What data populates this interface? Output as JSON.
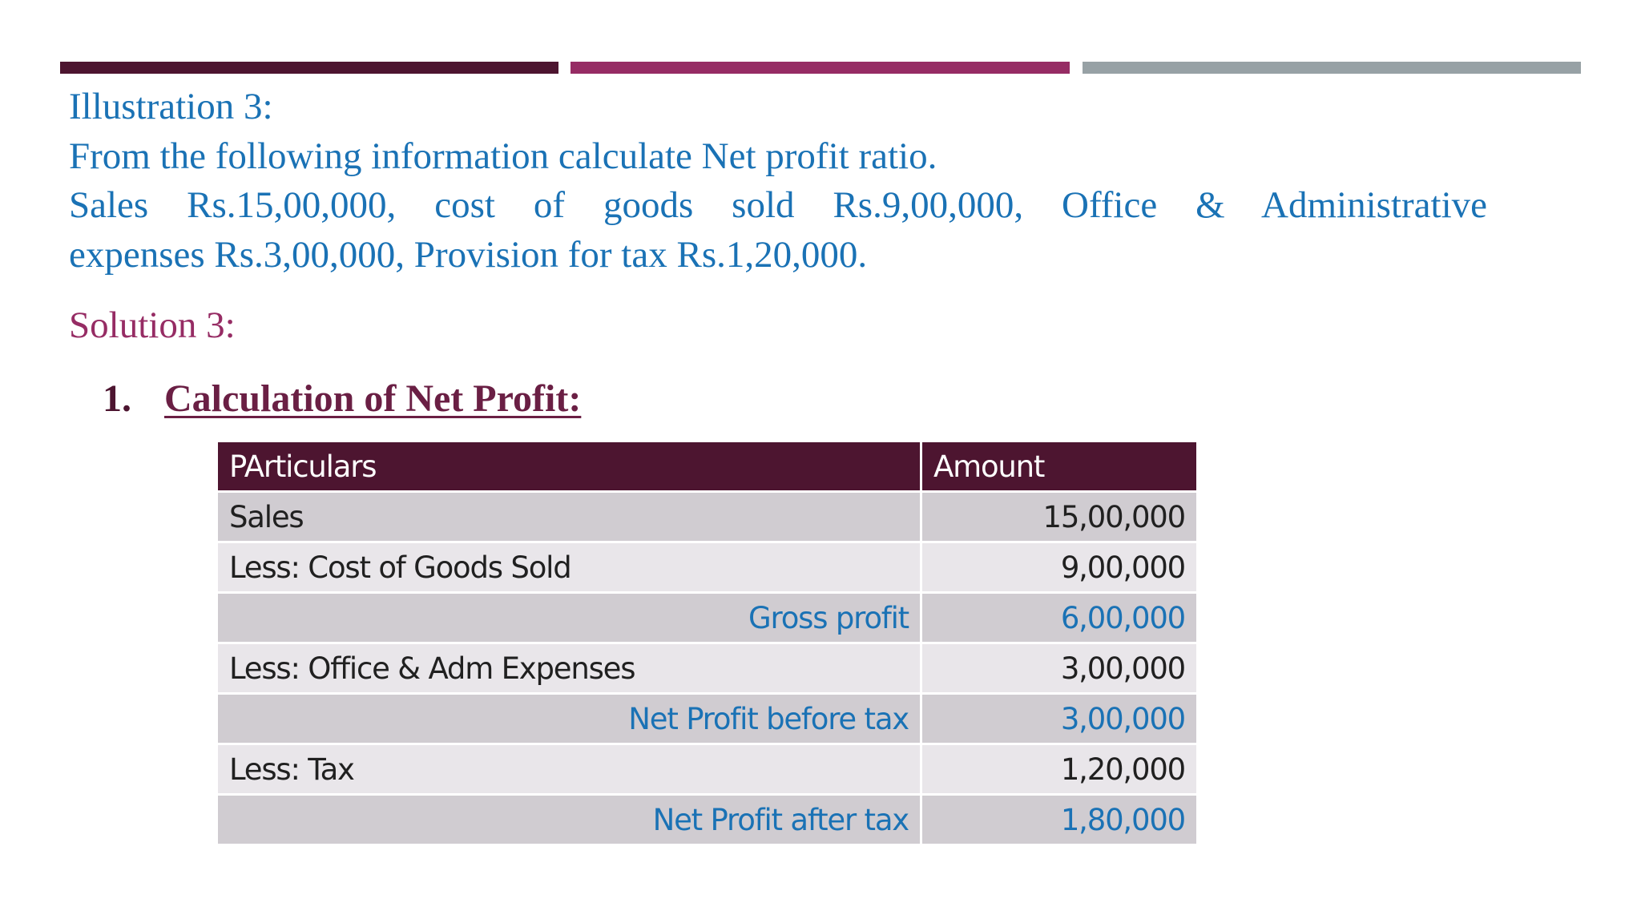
{
  "colors": {
    "bar_1": "#4d1530",
    "bar_2": "#962c64",
    "bar_3": "#97a1a5",
    "question_text": "#1a72b5",
    "solution_text": "#962c64",
    "table_header": "#4d1530",
    "row_dark": "#d0ccd1",
    "row_light": "#e9e6ea",
    "highlight_text": "#1a72b5"
  },
  "question": {
    "title": "Illustration 3:",
    "prompt": "From the following information calculate Net profit ratio.",
    "line_1": "Sales Rs.15,00,000, cost of goods sold Rs.9,00,000, Office & Administrative",
    "line_2": "expenses Rs.3,00,000, Provision for tax Rs.1,20,000."
  },
  "solution": {
    "heading": "Solution 3:",
    "step_number": "1.",
    "step_title": "Calculation of  Net Profit:"
  },
  "table": {
    "headers": [
      "PArticulars",
      "Amount"
    ],
    "rows": [
      {
        "particular": "Sales",
        "amount": "15,00,000"
      },
      {
        "particular": "Less: Cost of Goods Sold",
        "amount": "9,00,000"
      },
      {
        "particular": "Gross profit",
        "amount": "6,00,000"
      },
      {
        "particular": "Less: Office & Adm Expenses",
        "amount": "3,00,000"
      },
      {
        "particular": "Net Profit before tax",
        "amount": "3,00,000"
      },
      {
        "particular": "Less: Tax",
        "amount": "1,20,000"
      },
      {
        "particular": "Net Profit after tax",
        "amount": "1,80,000"
      }
    ]
  }
}
